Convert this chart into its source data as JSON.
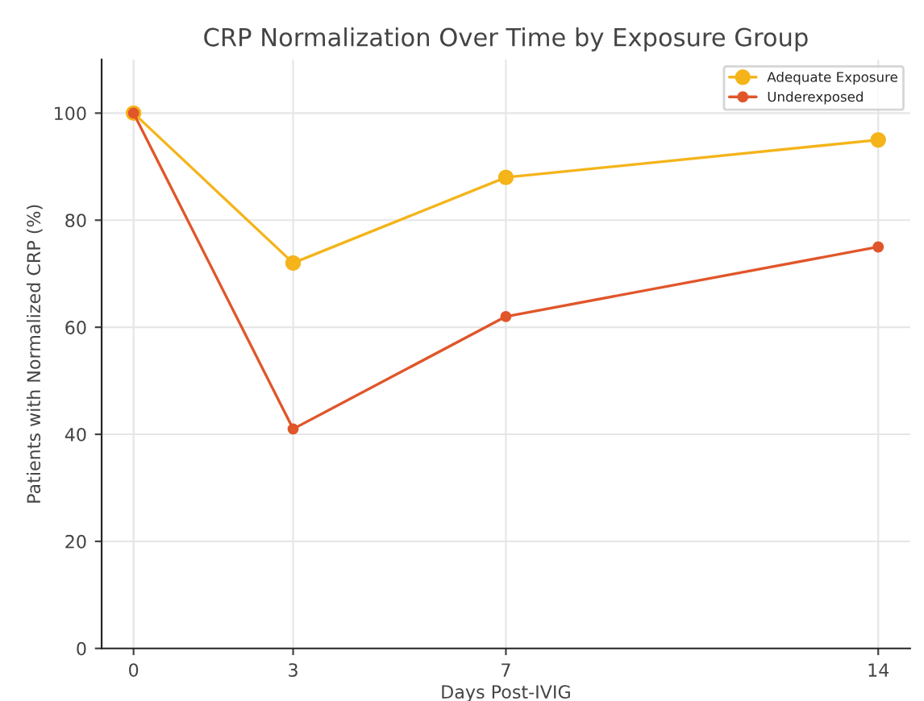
{
  "chart_data": {
    "type": "line",
    "title": "CRP Normalization Over Time by Exposure Group",
    "xlabel": "Days Post-IVIG",
    "ylabel": "Patients with Normalized CRP (%)",
    "x": [
      0,
      3,
      7,
      14
    ],
    "series": [
      {
        "name": "Adequate Exposure",
        "color": "#f4b41a",
        "values": [
          100,
          72,
          88,
          95
        ]
      },
      {
        "name": "Underexposed",
        "color": "#e0562a",
        "values": [
          100,
          41,
          62,
          75
        ]
      }
    ],
    "xlim": [
      -0.6,
      14.6
    ],
    "xticks": [
      0,
      3,
      7,
      14
    ],
    "ylim": [
      0,
      110
    ],
    "yticks": [
      0,
      20,
      40,
      60,
      80,
      100
    ],
    "grid": true,
    "legend": "top right",
    "marker": "circle",
    "line_style": "solid"
  }
}
